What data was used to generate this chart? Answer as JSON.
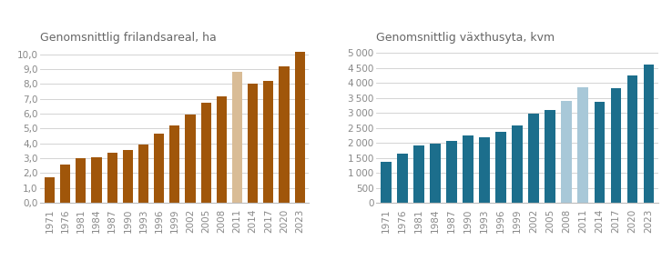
{
  "left_title": "Genomsnittlig frilandsareal, ha",
  "right_title": "Genomsnittlig växthusyta, kvm",
  "years": [
    "1971",
    "1976",
    "1981",
    "1984",
    "1987",
    "1990",
    "1993",
    "1996",
    "1999",
    "2002",
    "2005",
    "2008",
    "2011",
    "2014",
    "2017",
    "2020",
    "2023"
  ],
  "left_values": [
    1.7,
    2.6,
    3.0,
    3.05,
    3.35,
    3.55,
    3.9,
    4.65,
    5.2,
    5.95,
    6.75,
    7.15,
    8.8,
    8.0,
    8.2,
    9.2,
    10.15
  ],
  "left_colors": [
    "#A0560A",
    "#A0560A",
    "#A0560A",
    "#A0560A",
    "#A0560A",
    "#A0560A",
    "#A0560A",
    "#A0560A",
    "#A0560A",
    "#A0560A",
    "#A0560A",
    "#A0560A",
    "#D9BC96",
    "#A0560A",
    "#A0560A",
    "#A0560A",
    "#A0560A"
  ],
  "right_values": [
    1380,
    1640,
    1900,
    1980,
    2060,
    2240,
    2180,
    2380,
    2580,
    2960,
    3100,
    3400,
    3850,
    3380,
    3820,
    4230,
    4600
  ],
  "right_colors": [
    "#1C6E8C",
    "#1C6E8C",
    "#1C6E8C",
    "#1C6E8C",
    "#1C6E8C",
    "#1C6E8C",
    "#1C6E8C",
    "#1C6E8C",
    "#1C6E8C",
    "#1C6E8C",
    "#1C6E8C",
    "#A8C8D8",
    "#A8C8D8",
    "#1C6E8C",
    "#1C6E8C",
    "#1C6E8C",
    "#1C6E8C"
  ],
  "left_ylim": [
    0,
    10.5
  ],
  "left_yticks": [
    0.0,
    1.0,
    2.0,
    3.0,
    4.0,
    5.0,
    6.0,
    7.0,
    8.0,
    9.0,
    10.0
  ],
  "right_ylim": [
    0,
    5200
  ],
  "right_yticks": [
    0,
    500,
    1000,
    1500,
    2000,
    2500,
    3000,
    3500,
    4000,
    4500,
    5000
  ],
  "background_color": "#FFFFFF",
  "title_fontsize": 9.0,
  "tick_fontsize": 7.5,
  "grid_color": "#CCCCCC",
  "title_color": "#666666",
  "tick_color": "#888888"
}
